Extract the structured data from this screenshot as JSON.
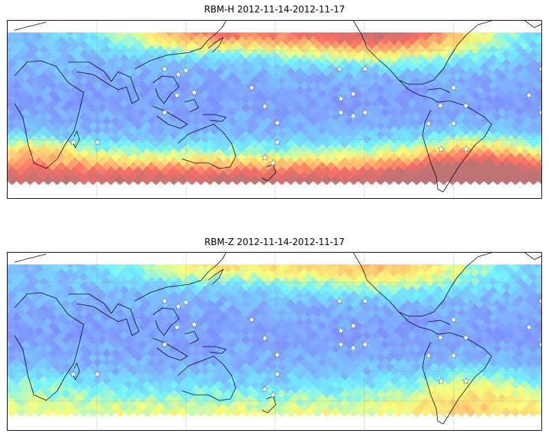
{
  "panels": [
    {
      "title": "RBM-H 2012-11-14-2012-11-17",
      "variable": "RBM-H",
      "date_range": "2012-11-14-2012-11-17",
      "colormap": [
        "#6b62ff",
        "#6fa0ff",
        "#5ff2ff",
        "#f6ff6a",
        "#ffc060",
        "#ff5a50",
        "#b86060"
      ],
      "land_color": "#ffffff",
      "coastline_color": "#000000",
      "gridlines": true,
      "station_marker": "white-star-icon",
      "intensity_features": {
        "high_north_pacific": "strong",
        "high_north_atlantic": "strong",
        "high_southern_ocean": "strong",
        "low_equatorial": "strong"
      }
    },
    {
      "title": "RBM-Z 2012-11-14-2012-11-17",
      "variable": "RBM-Z",
      "date_range": "2012-11-14-2012-11-17",
      "colormap": [
        "#6b62ff",
        "#6fa0ff",
        "#5ff2ff",
        "#f6ff6a",
        "#ffc060",
        "#ff5a50",
        "#b86060"
      ],
      "land_color": "#ffffff",
      "coastline_color": "#000000",
      "gridlines": true,
      "station_marker": "white-star-icon",
      "intensity_features": {
        "high_north_pacific": "moderate",
        "high_north_atlantic": "moderate",
        "high_southern_ocean": "weak",
        "low_equatorial": "strong"
      }
    }
  ]
}
